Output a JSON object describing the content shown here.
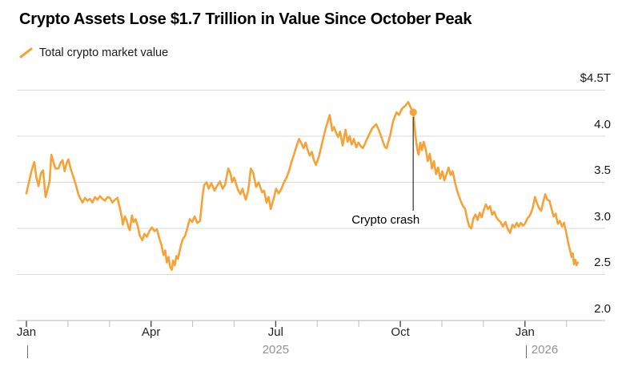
{
  "title": "Crypto Assets Lose $1.7 Trillion in Value Since October Peak",
  "legend": {
    "label": "Total crypto market value",
    "color": "#F7A237"
  },
  "annotation": {
    "label": "Crypto crash"
  },
  "y_axis": {
    "labels": [
      "$4.5T",
      "4.0",
      "3.5",
      "3.0",
      "2.5",
      "2.0"
    ]
  },
  "x_axis": {
    "month_labels": [
      "Jan",
      "Apr",
      "Jul",
      "Oct",
      "Jan"
    ],
    "year_labels": [
      "2025",
      "2026"
    ]
  },
  "chart_data": {
    "type": "line",
    "title": "Crypto Assets Lose $1.7 Trillion in Value Since October Peak",
    "x": {
      "unit": "months since 2025-01-01",
      "tick_labels": [
        "Jan",
        "Apr",
        "Jul",
        "Oct",
        "Jan"
      ],
      "tick_months": [
        0,
        3,
        6,
        9,
        12
      ],
      "minor_tick_months": [
        1,
        2,
        4,
        5,
        7,
        8,
        10,
        11,
        13
      ],
      "year_labels": [
        "2025",
        "2026"
      ],
      "range": [
        0,
        13.95
      ]
    },
    "y": {
      "unit": "trillion USD",
      "tick_labels": [
        "$4.5T",
        "4.0",
        "3.5",
        "3.0",
        "2.5",
        "2.0"
      ],
      "tick_values": [
        4.5,
        4.0,
        3.5,
        3.0,
        2.5,
        2.0
      ],
      "range": [
        2.0,
        4.5
      ],
      "grid": true
    },
    "annotation": {
      "label": "Crypto crash",
      "x_month": 9.31,
      "value": 4.26
    },
    "series": [
      {
        "name": "Total crypto market value",
        "color": "#F7A237",
        "points": [
          [
            0.0,
            3.38
          ],
          [
            0.06,
            3.5
          ],
          [
            0.12,
            3.62
          ],
          [
            0.19,
            3.72
          ],
          [
            0.24,
            3.55
          ],
          [
            0.29,
            3.46
          ],
          [
            0.35,
            3.6
          ],
          [
            0.4,
            3.63
          ],
          [
            0.46,
            3.34
          ],
          [
            0.52,
            3.44
          ],
          [
            0.56,
            3.52
          ],
          [
            0.6,
            3.8
          ],
          [
            0.65,
            3.72
          ],
          [
            0.7,
            3.65
          ],
          [
            0.77,
            3.65
          ],
          [
            0.83,
            3.72
          ],
          [
            0.87,
            3.74
          ],
          [
            0.92,
            3.62
          ],
          [
            0.97,
            3.71
          ],
          [
            1.01,
            3.75
          ],
          [
            1.07,
            3.64
          ],
          [
            1.13,
            3.56
          ],
          [
            1.19,
            3.47
          ],
          [
            1.25,
            3.37
          ],
          [
            1.3,
            3.32
          ],
          [
            1.35,
            3.28
          ],
          [
            1.41,
            3.33
          ],
          [
            1.47,
            3.3
          ],
          [
            1.53,
            3.32
          ],
          [
            1.59,
            3.28
          ],
          [
            1.65,
            3.34
          ],
          [
            1.71,
            3.31
          ],
          [
            1.77,
            3.35
          ],
          [
            1.83,
            3.32
          ],
          [
            1.89,
            3.3
          ],
          [
            1.95,
            3.34
          ],
          [
            2.01,
            3.33
          ],
          [
            2.07,
            3.28
          ],
          [
            2.13,
            3.31
          ],
          [
            2.19,
            3.33
          ],
          [
            2.25,
            3.22
          ],
          [
            2.3,
            3.11
          ],
          [
            2.32,
            3.04
          ],
          [
            2.37,
            3.13
          ],
          [
            2.41,
            3.09
          ],
          [
            2.45,
            3.02
          ],
          [
            2.49,
            2.98
          ],
          [
            2.54,
            3.14
          ],
          [
            2.58,
            3.07
          ],
          [
            2.63,
            3.1
          ],
          [
            2.68,
            3.02
          ],
          [
            2.73,
            2.92
          ],
          [
            2.79,
            2.87
          ],
          [
            2.84,
            2.94
          ],
          [
            2.9,
            2.91
          ],
          [
            2.96,
            2.97
          ],
          [
            3.02,
            3.01
          ],
          [
            3.08,
            2.97
          ],
          [
            3.14,
            2.99
          ],
          [
            3.2,
            2.89
          ],
          [
            3.25,
            2.82
          ],
          [
            3.3,
            2.71
          ],
          [
            3.34,
            2.76
          ],
          [
            3.38,
            2.63
          ],
          [
            3.42,
            2.69
          ],
          [
            3.46,
            2.58
          ],
          [
            3.5,
            2.55
          ],
          [
            3.53,
            2.65
          ],
          [
            3.57,
            2.6
          ],
          [
            3.61,
            2.7
          ],
          [
            3.65,
            2.67
          ],
          [
            3.7,
            2.78
          ],
          [
            3.76,
            2.88
          ],
          [
            3.82,
            2.92
          ],
          [
            3.87,
            3.0
          ],
          [
            3.93,
            3.1
          ],
          [
            3.99,
            3.07
          ],
          [
            4.05,
            3.13
          ],
          [
            4.11,
            3.06
          ],
          [
            4.18,
            3.08
          ],
          [
            4.24,
            3.36
          ],
          [
            4.28,
            3.47
          ],
          [
            4.34,
            3.5
          ],
          [
            4.39,
            3.43
          ],
          [
            4.45,
            3.49
          ],
          [
            4.53,
            3.41
          ],
          [
            4.6,
            3.47
          ],
          [
            4.66,
            3.51
          ],
          [
            4.72,
            3.43
          ],
          [
            4.78,
            3.47
          ],
          [
            4.86,
            3.65
          ],
          [
            4.91,
            3.6
          ],
          [
            4.95,
            3.5
          ],
          [
            5.0,
            3.55
          ],
          [
            5.09,
            3.42
          ],
          [
            5.15,
            3.37
          ],
          [
            5.2,
            3.43
          ],
          [
            5.28,
            3.31
          ],
          [
            5.34,
            3.41
          ],
          [
            5.4,
            3.65
          ],
          [
            5.46,
            3.6
          ],
          [
            5.53,
            3.45
          ],
          [
            5.59,
            3.5
          ],
          [
            5.67,
            3.39
          ],
          [
            5.72,
            3.41
          ],
          [
            5.78,
            3.28
          ],
          [
            5.83,
            3.34
          ],
          [
            5.88,
            3.21
          ],
          [
            5.95,
            3.32
          ],
          [
            6.01,
            3.43
          ],
          [
            6.07,
            3.38
          ],
          [
            6.13,
            3.42
          ],
          [
            6.2,
            3.5
          ],
          [
            6.26,
            3.55
          ],
          [
            6.32,
            3.62
          ],
          [
            6.38,
            3.72
          ],
          [
            6.44,
            3.8
          ],
          [
            6.5,
            3.89
          ],
          [
            6.56,
            3.97
          ],
          [
            6.62,
            3.92
          ],
          [
            6.67,
            3.87
          ],
          [
            6.72,
            3.93
          ],
          [
            6.77,
            3.85
          ],
          [
            6.82,
            3.79
          ],
          [
            6.87,
            3.83
          ],
          [
            6.92,
            3.74
          ],
          [
            6.97,
            3.69
          ],
          [
            7.04,
            3.78
          ],
          [
            7.12,
            3.93
          ],
          [
            7.2,
            4.08
          ],
          [
            7.3,
            4.23
          ],
          [
            7.36,
            4.06
          ],
          [
            7.4,
            4.1
          ],
          [
            7.46,
            4.03
          ],
          [
            7.5,
            3.99
          ],
          [
            7.55,
            4.05
          ],
          [
            7.61,
            3.9
          ],
          [
            7.68,
            4.07
          ],
          [
            7.73,
            3.94
          ],
          [
            7.78,
            4.0
          ],
          [
            7.83,
            3.91
          ],
          [
            7.88,
            3.97
          ],
          [
            7.94,
            3.88
          ],
          [
            7.99,
            3.93
          ],
          [
            8.05,
            3.89
          ],
          [
            8.1,
            3.87
          ],
          [
            8.17,
            3.94
          ],
          [
            8.25,
            4.02
          ],
          [
            8.33,
            4.09
          ],
          [
            8.42,
            4.13
          ],
          [
            8.49,
            4.06
          ],
          [
            8.56,
            3.97
          ],
          [
            8.63,
            3.88
          ],
          [
            8.67,
            3.87
          ],
          [
            8.75,
            4.0
          ],
          [
            8.83,
            4.17
          ],
          [
            8.91,
            4.26
          ],
          [
            8.97,
            4.23
          ],
          [
            9.04,
            4.3
          ],
          [
            9.12,
            4.33
          ],
          [
            9.19,
            4.37
          ],
          [
            9.26,
            4.3
          ],
          [
            9.31,
            4.26
          ],
          [
            9.36,
            4.02
          ],
          [
            9.41,
            3.85
          ],
          [
            9.44,
            3.8
          ],
          [
            9.48,
            3.93
          ],
          [
            9.52,
            3.85
          ],
          [
            9.56,
            3.94
          ],
          [
            9.61,
            3.86
          ],
          [
            9.66,
            3.73
          ],
          [
            9.71,
            3.81
          ],
          [
            9.76,
            3.65
          ],
          [
            9.81,
            3.73
          ],
          [
            9.86,
            3.59
          ],
          [
            9.91,
            3.66
          ],
          [
            9.96,
            3.54
          ],
          [
            10.01,
            3.62
          ],
          [
            10.06,
            3.52
          ],
          [
            10.11,
            3.59
          ],
          [
            10.16,
            3.66
          ],
          [
            10.21,
            3.58
          ],
          [
            10.26,
            3.62
          ],
          [
            10.31,
            3.51
          ],
          [
            10.36,
            3.42
          ],
          [
            10.41,
            3.35
          ],
          [
            10.46,
            3.29
          ],
          [
            10.51,
            3.24
          ],
          [
            10.56,
            3.21
          ],
          [
            10.61,
            3.1
          ],
          [
            10.66,
            3.02
          ],
          [
            10.71,
            3.0
          ],
          [
            10.76,
            3.11
          ],
          [
            10.81,
            3.15
          ],
          [
            10.86,
            3.09
          ],
          [
            10.91,
            3.17
          ],
          [
            10.96,
            3.12
          ],
          [
            11.01,
            3.2
          ],
          [
            11.06,
            3.26
          ],
          [
            11.11,
            3.21
          ],
          [
            11.16,
            3.24
          ],
          [
            11.21,
            3.15
          ],
          [
            11.26,
            3.18
          ],
          [
            11.31,
            3.12
          ],
          [
            11.36,
            3.09
          ],
          [
            11.41,
            3.07
          ],
          [
            11.47,
            3.02
          ],
          [
            11.53,
            3.07
          ],
          [
            11.58,
            3.0
          ],
          [
            11.64,
            2.95
          ],
          [
            11.7,
            3.04
          ],
          [
            11.75,
            3.01
          ],
          [
            11.8,
            3.06
          ],
          [
            11.85,
            3.02
          ],
          [
            11.9,
            3.06
          ],
          [
            11.95,
            3.03
          ],
          [
            12.0,
            3.05
          ],
          [
            12.06,
            3.11
          ],
          [
            12.12,
            3.14
          ],
          [
            12.18,
            3.21
          ],
          [
            12.24,
            3.34
          ],
          [
            12.29,
            3.27
          ],
          [
            12.34,
            3.22
          ],
          [
            12.39,
            3.19
          ],
          [
            12.44,
            3.29
          ],
          [
            12.49,
            3.37
          ],
          [
            12.54,
            3.31
          ],
          [
            12.59,
            3.3
          ],
          [
            12.64,
            3.21
          ],
          [
            12.69,
            3.13
          ],
          [
            12.74,
            3.16
          ],
          [
            12.79,
            3.05
          ],
          [
            12.84,
            3.08
          ],
          [
            12.89,
            3.02
          ],
          [
            12.94,
            3.06
          ],
          [
            13.0,
            2.94
          ],
          [
            13.04,
            2.84
          ],
          [
            13.08,
            2.77
          ],
          [
            13.12,
            2.69
          ],
          [
            13.15,
            2.73
          ],
          [
            13.18,
            2.61
          ],
          [
            13.21,
            2.66
          ],
          [
            13.24,
            2.6
          ],
          [
            13.27,
            2.63
          ]
        ]
      }
    ]
  }
}
